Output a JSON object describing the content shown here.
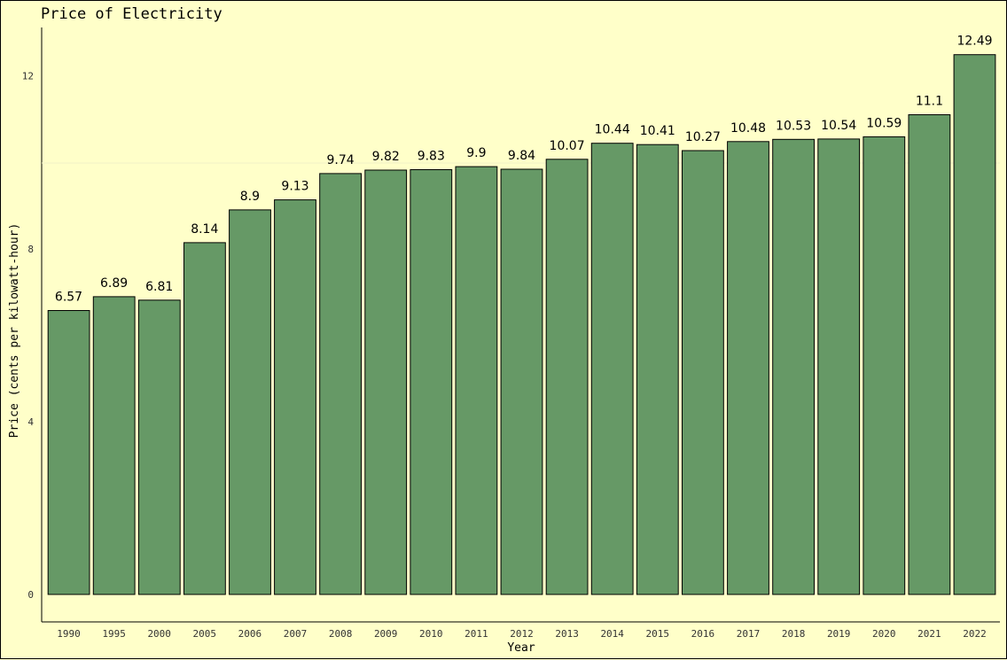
{
  "chart_data": {
    "type": "bar",
    "title": "Price of Electricity",
    "xlabel": "Year",
    "ylabel": "Price (cents per kilowatt-hour)",
    "categories": [
      "1990",
      "1995",
      "2000",
      "2005",
      "2006",
      "2007",
      "2008",
      "2009",
      "2010",
      "2011",
      "2012",
      "2013",
      "2014",
      "2015",
      "2016",
      "2017",
      "2018",
      "2019",
      "2020",
      "2021",
      "2022"
    ],
    "values": [
      6.57,
      6.89,
      6.81,
      8.14,
      8.9,
      9.13,
      9.74,
      9.82,
      9.83,
      9.9,
      9.84,
      10.07,
      10.44,
      10.41,
      10.27,
      10.48,
      10.53,
      10.54,
      10.59,
      11.1,
      12.49
    ],
    "value_labels": [
      "6.57",
      "6.89",
      "6.81",
      "8.14",
      "8.9",
      "9.13",
      "9.74",
      "9.82",
      "9.83",
      "9.9",
      "9.84",
      "10.07",
      "10.44",
      "10.41",
      "10.27",
      "10.48",
      "10.53",
      "10.54",
      "10.59",
      "11.1",
      "12.49"
    ],
    "y_ticks": [
      "0",
      "4",
      "8",
      "12"
    ],
    "ylim": [
      0,
      13.1
    ],
    "grid": false,
    "legend": "none",
    "bar_color": "#669966",
    "bar_border": "#000000",
    "background": "#ffffc9"
  }
}
